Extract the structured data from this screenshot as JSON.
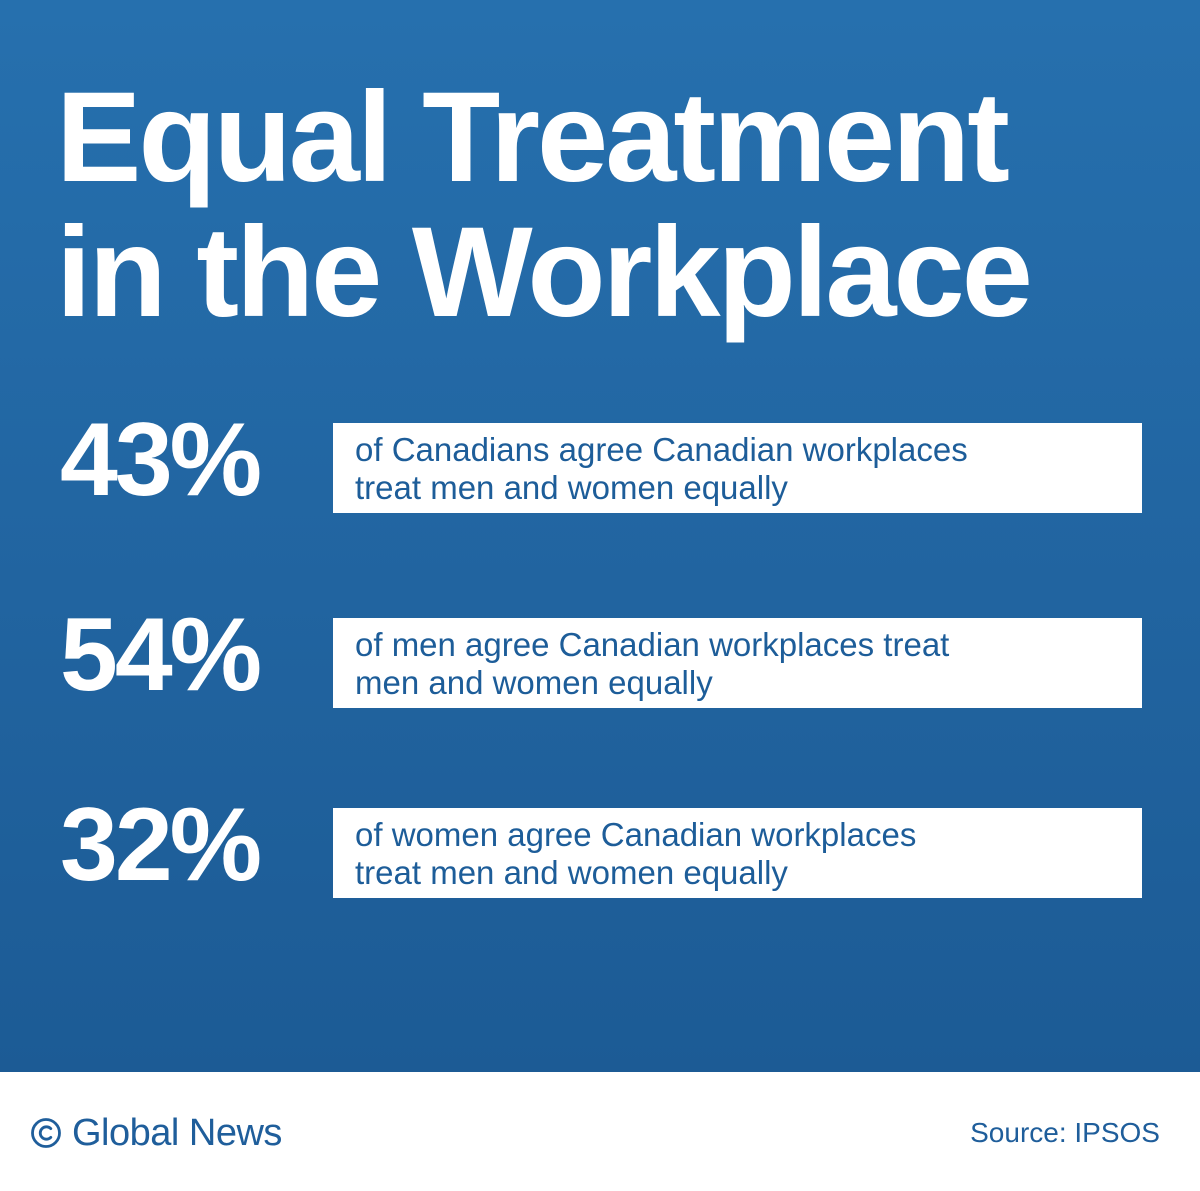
{
  "title": {
    "line1": "Equal Treatment",
    "line2": "in the Workplace"
  },
  "stats": [
    {
      "percent": "43%",
      "value": 43,
      "line1": "of Canadians agree Canadian workplaces",
      "line2": "treat men and women equally"
    },
    {
      "percent": "54%",
      "value": 54,
      "line1": "of men agree Canadian workplaces treat",
      "line2": "men and women equally"
    },
    {
      "percent": "32%",
      "value": 32,
      "line1": "of women agree Canadian workplaces",
      "line2": "treat men and women equally"
    }
  ],
  "footer": {
    "brand": "Global News",
    "source": "Source: IPSOS"
  },
  "icons": {
    "copyright": "copyright-icon"
  },
  "colors": {
    "background_blue": "#2164a0",
    "text_blue": "#1d5d99",
    "white": "#ffffff"
  }
}
